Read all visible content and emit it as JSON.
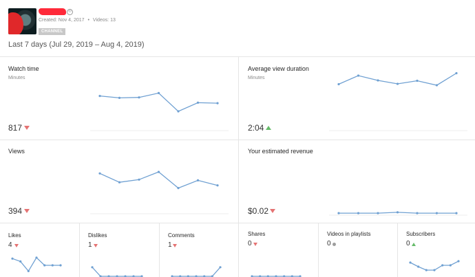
{
  "channel": {
    "created": "Created: Nov 4, 2017",
    "separator": "•",
    "videos": "Videos: 13",
    "badge": "CHANNEL",
    "verified_glyph": "®"
  },
  "range": "Last 7 days (Jul 29, 2019 – Aug 4, 2019)",
  "cards": {
    "watch_time": {
      "title": "Watch time",
      "sub": "Minutes",
      "value": "817",
      "trend": "down",
      "points": [
        0.72,
        0.68,
        0.69,
        0.78,
        0.4,
        0.58,
        0.57
      ]
    },
    "avg_view_duration": {
      "title": "Average view duration",
      "sub": "Minutes",
      "value": "2:04",
      "trend": "up",
      "points": [
        0.55,
        0.8,
        0.66,
        0.56,
        0.65,
        0.52,
        0.87
      ]
    },
    "views": {
      "title": "Views",
      "value": "394",
      "trend": "down",
      "points": [
        0.78,
        0.55,
        0.62,
        0.82,
        0.4,
        0.6,
        0.47
      ]
    },
    "revenue": {
      "title": "Your estimated revenue",
      "value": "$0.02",
      "trend": "down",
      "points": [
        0.03,
        0.03,
        0.03,
        0.05,
        0.03,
        0.03,
        0.03
      ]
    },
    "likes": {
      "title": "Likes",
      "value": "4",
      "trend": "down",
      "points": [
        0.85,
        0.7,
        0.2,
        0.9,
        0.5,
        0.5,
        0.5
      ]
    },
    "dislikes": {
      "title": "Dislikes",
      "value": "1",
      "trend": "down",
      "points": [
        0.6,
        0.0,
        0.0,
        0.0,
        0.0,
        0.0,
        0.0
      ]
    },
    "comments": {
      "title": "Comments",
      "value": "1",
      "trend": "down",
      "points": [
        0.0,
        0.0,
        0.0,
        0.0,
        0.0,
        0.0,
        0.6
      ]
    },
    "shares": {
      "title": "Shares",
      "value": "0",
      "trend": "down",
      "points": [
        0.0,
        0.0,
        0.0,
        0.0,
        0.0,
        0.0,
        0.0
      ]
    },
    "videos_in_playlists": {
      "title": "Videos in playlists",
      "value": "0",
      "trend": "flat",
      "points": []
    },
    "subscribers": {
      "title": "Subscribers",
      "value": "0",
      "trend": "up",
      "points": [
        0.8,
        0.5,
        0.25,
        0.25,
        0.6,
        0.6,
        0.9
      ]
    }
  }
}
